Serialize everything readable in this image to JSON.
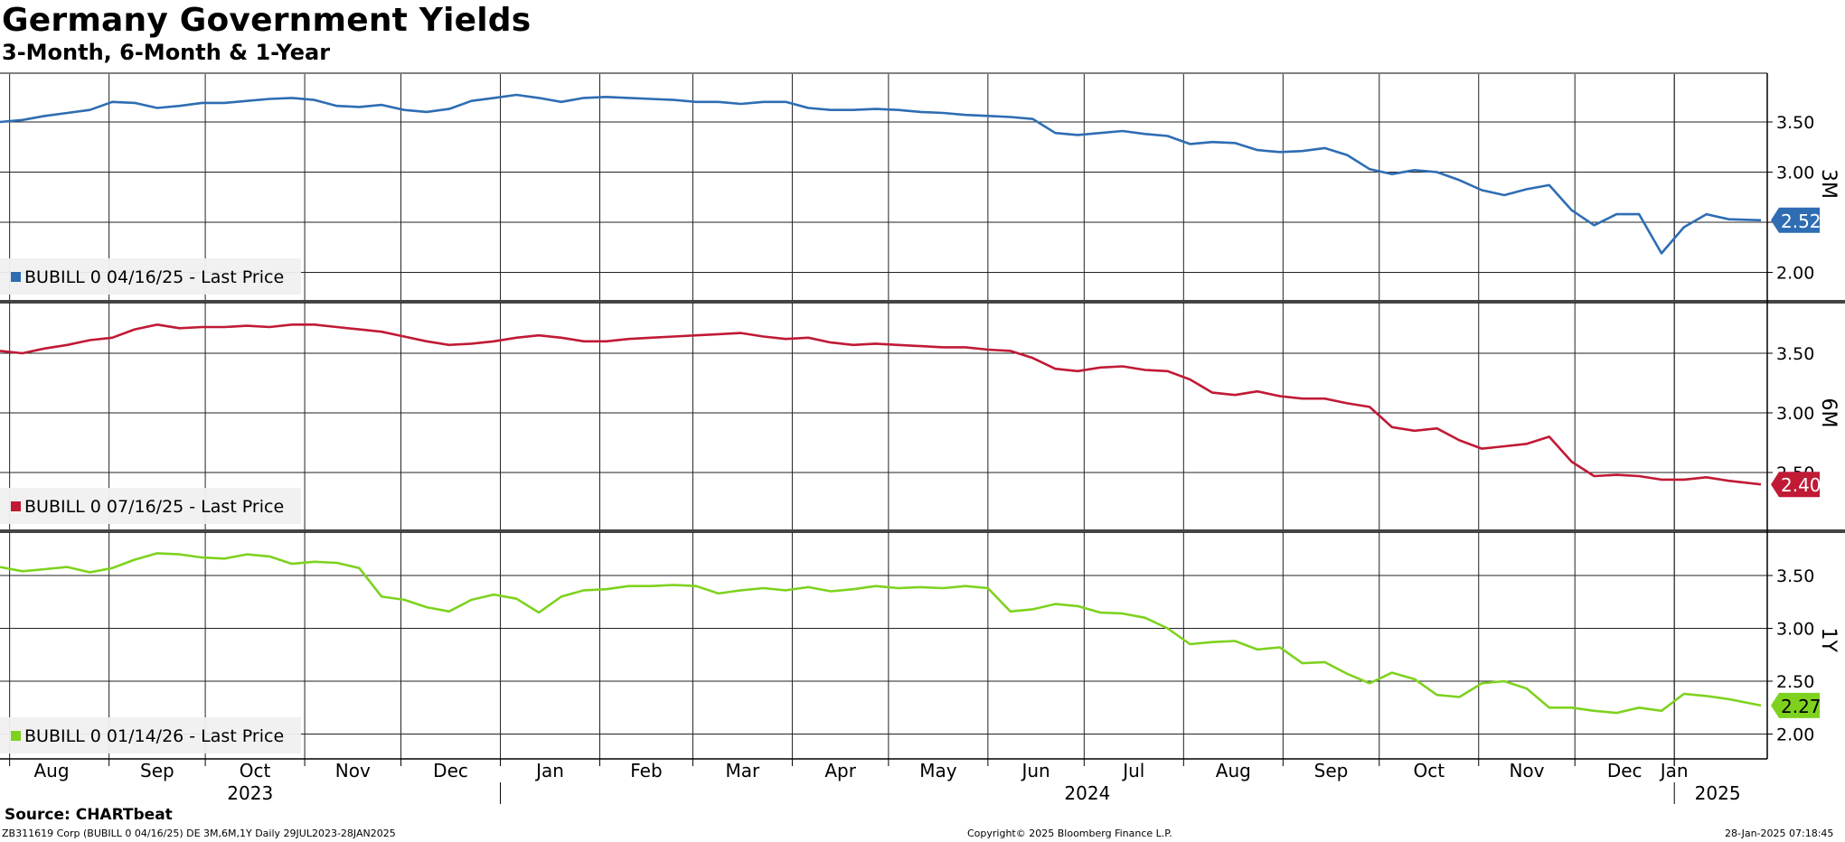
{
  "title": "Germany Government Yields",
  "subtitle": "3-Month, 6-Month & 1-Year",
  "source": "Source: CHARTbeat",
  "footer": {
    "left": "ZB311619 Corp (BUBILL 0 04/16/25) DE 3M,6M,1Y  Daily 29JUL2023-28JAN2025",
    "center": "Copyright© 2025 Bloomberg Finance L.P.",
    "right": "28-Jan-2025 07:18:45"
  },
  "colors": {
    "3M": "#2e6db3",
    "6M": "#c01a35",
    "1Y": "#7ed21f"
  },
  "chart_data": {
    "type": "line",
    "x_axis": {
      "months": [
        "Aug",
        "Sep",
        "Oct",
        "Nov",
        "Dec",
        "Jan",
        "Feb",
        "Mar",
        "Apr",
        "May",
        "Jun",
        "Jul",
        "Aug",
        "Sep",
        "Oct",
        "Nov",
        "Dec",
        "Jan"
      ],
      "years": [
        "2023",
        "2024",
        "2025"
      ],
      "range": [
        "2023-07-29",
        "2025-01-28"
      ]
    },
    "panels": [
      {
        "axis_label": "3M",
        "legend": "BUBILL 0 04/16/25 - Last Price",
        "last_value": "2.52",
        "yticks": [
          "3.50",
          "3.00",
          "2.50",
          "2.00"
        ],
        "series": {
          "dates": [
            "2023-07-29",
            "2023-08-05",
            "2023-08-12",
            "2023-08-19",
            "2023-08-26",
            "2023-09-02",
            "2023-09-09",
            "2023-09-16",
            "2023-09-23",
            "2023-09-30",
            "2023-10-07",
            "2023-10-14",
            "2023-10-21",
            "2023-10-28",
            "2023-11-04",
            "2023-11-11",
            "2023-11-18",
            "2023-11-25",
            "2023-12-02",
            "2023-12-09",
            "2023-12-16",
            "2023-12-23",
            "2023-12-30",
            "2024-01-06",
            "2024-01-13",
            "2024-01-20",
            "2024-01-27",
            "2024-02-03",
            "2024-02-10",
            "2024-02-17",
            "2024-02-24",
            "2024-03-02",
            "2024-03-09",
            "2024-03-16",
            "2024-03-23",
            "2024-03-30",
            "2024-04-06",
            "2024-04-13",
            "2024-04-20",
            "2024-04-27",
            "2024-05-04",
            "2024-05-11",
            "2024-05-18",
            "2024-05-25",
            "2024-06-01",
            "2024-06-08",
            "2024-06-15",
            "2024-06-22",
            "2024-06-29",
            "2024-07-06",
            "2024-07-13",
            "2024-07-20",
            "2024-07-27",
            "2024-08-03",
            "2024-08-10",
            "2024-08-17",
            "2024-08-24",
            "2024-08-31",
            "2024-09-07",
            "2024-09-14",
            "2024-09-21",
            "2024-09-28",
            "2024-10-05",
            "2024-10-12",
            "2024-10-19",
            "2024-10-26",
            "2024-11-02",
            "2024-11-09",
            "2024-11-16",
            "2024-11-23",
            "2024-11-30",
            "2024-12-07",
            "2024-12-14",
            "2024-12-21",
            "2024-12-28",
            "2025-01-04",
            "2025-01-11",
            "2025-01-18",
            "2025-01-28"
          ],
          "values": [
            3.5,
            3.52,
            3.56,
            3.59,
            3.62,
            3.7,
            3.69,
            3.64,
            3.66,
            3.69,
            3.69,
            3.71,
            3.73,
            3.74,
            3.72,
            3.66,
            3.65,
            3.67,
            3.62,
            3.6,
            3.63,
            3.71,
            3.74,
            3.77,
            3.74,
            3.7,
            3.74,
            3.75,
            3.74,
            3.73,
            3.72,
            3.7,
            3.7,
            3.68,
            3.7,
            3.7,
            3.64,
            3.62,
            3.62,
            3.63,
            3.62,
            3.6,
            3.59,
            3.57,
            3.56,
            3.55,
            3.53,
            3.39,
            3.37,
            3.39,
            3.41,
            3.38,
            3.36,
            3.28,
            3.3,
            3.29,
            3.22,
            3.2,
            3.21,
            3.24,
            3.17,
            3.03,
            2.98,
            3.02,
            3.0,
            2.92,
            2.82,
            2.77,
            2.83,
            2.87,
            2.62,
            2.47,
            2.58,
            2.58,
            2.19,
            2.45,
            2.58,
            2.53,
            2.52
          ]
        }
      },
      {
        "axis_label": "6M",
        "legend": "BUBILL 0 07/16/25 - Last Price",
        "last_value": "2.40",
        "yticks": [
          "3.50",
          "3.00",
          "2.50"
        ],
        "series": {
          "dates": [
            "2023-07-29",
            "2023-08-05",
            "2023-08-12",
            "2023-08-19",
            "2023-08-26",
            "2023-09-02",
            "2023-09-09",
            "2023-09-16",
            "2023-09-23",
            "2023-09-30",
            "2023-10-07",
            "2023-10-14",
            "2023-10-21",
            "2023-10-28",
            "2023-11-04",
            "2023-11-11",
            "2023-11-18",
            "2023-11-25",
            "2023-12-02",
            "2023-12-09",
            "2023-12-16",
            "2023-12-23",
            "2023-12-30",
            "2024-01-06",
            "2024-01-13",
            "2024-01-20",
            "2024-01-27",
            "2024-02-03",
            "2024-02-10",
            "2024-02-17",
            "2024-02-24",
            "2024-03-02",
            "2024-03-09",
            "2024-03-16",
            "2024-03-23",
            "2024-03-30",
            "2024-04-06",
            "2024-04-13",
            "2024-04-20",
            "2024-04-27",
            "2024-05-04",
            "2024-05-11",
            "2024-05-18",
            "2024-05-25",
            "2024-06-01",
            "2024-06-08",
            "2024-06-15",
            "2024-06-22",
            "2024-06-29",
            "2024-07-06",
            "2024-07-13",
            "2024-07-20",
            "2024-07-27",
            "2024-08-03",
            "2024-08-10",
            "2024-08-17",
            "2024-08-24",
            "2024-08-31",
            "2024-09-07",
            "2024-09-14",
            "2024-09-21",
            "2024-09-28",
            "2024-10-05",
            "2024-10-12",
            "2024-10-19",
            "2024-10-26",
            "2024-11-02",
            "2024-11-09",
            "2024-11-16",
            "2024-11-23",
            "2024-11-30",
            "2024-12-07",
            "2024-12-14",
            "2024-12-21",
            "2024-12-28",
            "2025-01-04",
            "2025-01-11",
            "2025-01-18",
            "2025-01-28"
          ],
          "values": [
            3.52,
            3.5,
            3.54,
            3.57,
            3.61,
            3.63,
            3.7,
            3.74,
            3.71,
            3.72,
            3.72,
            3.73,
            3.72,
            3.74,
            3.74,
            3.72,
            3.7,
            3.68,
            3.64,
            3.6,
            3.57,
            3.58,
            3.6,
            3.63,
            3.65,
            3.63,
            3.6,
            3.6,
            3.62,
            3.63,
            3.64,
            3.65,
            3.66,
            3.67,
            3.64,
            3.62,
            3.63,
            3.59,
            3.57,
            3.58,
            3.57,
            3.56,
            3.55,
            3.55,
            3.53,
            3.52,
            3.46,
            3.37,
            3.35,
            3.38,
            3.39,
            3.36,
            3.35,
            3.28,
            3.17,
            3.15,
            3.18,
            3.14,
            3.12,
            3.12,
            3.08,
            3.05,
            2.88,
            2.85,
            2.87,
            2.77,
            2.7,
            2.72,
            2.74,
            2.8,
            2.59,
            2.47,
            2.48,
            2.47,
            2.44,
            2.44,
            2.46,
            2.43,
            2.4
          ]
        }
      },
      {
        "axis_label": "1Y",
        "legend": "BUBILL 0 01/14/26 - Last Price",
        "last_value": "2.27",
        "yticks": [
          "3.50",
          "3.00",
          "2.50",
          "2.00"
        ],
        "series": {
          "dates": [
            "2023-07-29",
            "2023-08-05",
            "2023-08-12",
            "2023-08-19",
            "2023-08-26",
            "2023-09-02",
            "2023-09-09",
            "2023-09-16",
            "2023-09-23",
            "2023-09-30",
            "2023-10-07",
            "2023-10-14",
            "2023-10-21",
            "2023-10-28",
            "2023-11-04",
            "2023-11-11",
            "2023-11-18",
            "2023-11-25",
            "2023-12-02",
            "2023-12-09",
            "2023-12-16",
            "2023-12-23",
            "2023-12-30",
            "2024-01-06",
            "2024-01-13",
            "2024-01-20",
            "2024-01-27",
            "2024-02-03",
            "2024-02-10",
            "2024-02-17",
            "2024-02-24",
            "2024-03-02",
            "2024-03-09",
            "2024-03-16",
            "2024-03-23",
            "2024-03-30",
            "2024-04-06",
            "2024-04-13",
            "2024-04-20",
            "2024-04-27",
            "2024-05-04",
            "2024-05-11",
            "2024-05-18",
            "2024-05-25",
            "2024-06-01",
            "2024-06-08",
            "2024-06-15",
            "2024-06-22",
            "2024-06-29",
            "2024-07-06",
            "2024-07-13",
            "2024-07-20",
            "2024-07-27",
            "2024-08-03",
            "2024-08-10",
            "2024-08-17",
            "2024-08-24",
            "2024-08-31",
            "2024-09-07",
            "2024-09-14",
            "2024-09-21",
            "2024-09-28",
            "2024-10-05",
            "2024-10-12",
            "2024-10-19",
            "2024-10-26",
            "2024-11-02",
            "2024-11-09",
            "2024-11-16",
            "2024-11-23",
            "2024-11-30",
            "2024-12-07",
            "2024-12-14",
            "2024-12-21",
            "2024-12-28",
            "2025-01-04",
            "2025-01-11",
            "2025-01-18",
            "2025-01-28"
          ],
          "values": [
            3.58,
            3.54,
            3.56,
            3.58,
            3.53,
            3.57,
            3.65,
            3.71,
            3.7,
            3.67,
            3.66,
            3.7,
            3.68,
            3.61,
            3.63,
            3.62,
            3.57,
            3.3,
            3.27,
            3.2,
            3.16,
            3.27,
            3.32,
            3.28,
            3.15,
            3.3,
            3.36,
            3.37,
            3.4,
            3.4,
            3.41,
            3.4,
            3.33,
            3.36,
            3.38,
            3.36,
            3.39,
            3.35,
            3.37,
            3.4,
            3.38,
            3.39,
            3.38,
            3.4,
            3.38,
            3.16,
            3.18,
            3.23,
            3.21,
            3.15,
            3.14,
            3.1,
            3.0,
            2.85,
            2.87,
            2.88,
            2.8,
            2.82,
            2.67,
            2.68,
            2.57,
            2.48,
            2.58,
            2.52,
            2.37,
            2.35,
            2.48,
            2.5,
            2.43,
            2.25,
            2.25,
            2.22,
            2.2,
            2.25,
            2.22,
            2.38,
            2.36,
            2.33,
            2.27
          ]
        }
      }
    ],
    "grid": true
  }
}
